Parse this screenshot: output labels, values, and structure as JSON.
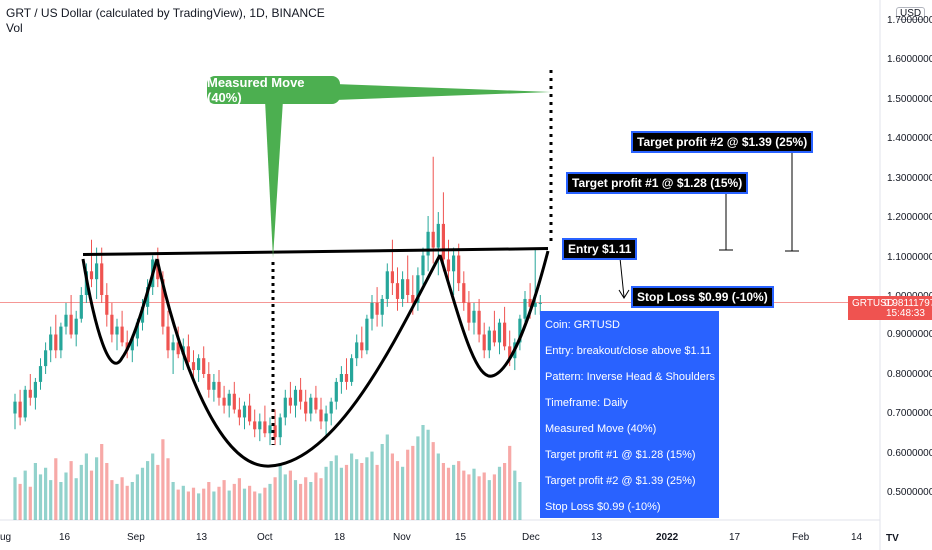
{
  "header": {
    "title": "GRT / US Dollar (calculated by TradingView), 1D, BINANCE",
    "vol_label": "Vol"
  },
  "currency_badge": "USD",
  "price_tag": {
    "symbol": "GRTUSD",
    "value": "0.98111797",
    "countdown": "15:48:33"
  },
  "y_axis_ticks": [
    "1.70000000",
    "1.60000000",
    "1.50000000",
    "1.40000000",
    "1.30000000",
    "1.20000000",
    "1.10000000",
    "1.00000000",
    "0.90000000",
    "0.80000000",
    "0.70000000",
    "0.60000000",
    "0.50000000"
  ],
  "x_axis_ticks": [
    "ug",
    "16",
    "Sep",
    "13",
    "Oct",
    "18",
    "Nov",
    "15",
    "Dec",
    "13",
    "2022",
    "17",
    "Feb",
    "14"
  ],
  "tv_logo": "TV",
  "annotations": {
    "measured_move": "Measured Move (40%)",
    "entry": "Entry $1.11",
    "target1": "Target profit #1 @ $1.28 (15%)",
    "target2": "Target profit #2 @ $1.39 (25%)",
    "stop_loss": "Stop Loss $0.99 (-10%)"
  },
  "info_box": [
    "Coin:  GRTUSD",
    "Entry: breakout/close above $1.11",
    "Pattern:  Inverse Head & Shoulders",
    "Timeframe:  Daily",
    "Measured Move (40%)",
    "Target profit #1 @ $1.28 (15%)",
    "Target profit #2 @ $1.39 (25%)",
    "Stop Loss $0.99 (-10%)"
  ],
  "colors": {
    "up": "#26a69a",
    "down": "#ef5350",
    "callout": "#4caf50",
    "info_bg": "#2962ff",
    "current_price": "#ef5350"
  },
  "chart_data": {
    "type": "candlestick",
    "ylim": [
      0.45,
      1.75
    ],
    "y_scale": "linear",
    "current_price": 0.98111797,
    "neckline": 1.11,
    "series": [
      {
        "o": 0.7,
        "h": 0.75,
        "l": 0.66,
        "c": 0.73
      },
      {
        "o": 0.73,
        "h": 0.76,
        "l": 0.67,
        "c": 0.69
      },
      {
        "o": 0.69,
        "h": 0.77,
        "l": 0.68,
        "c": 0.76
      },
      {
        "o": 0.76,
        "h": 0.8,
        "l": 0.72,
        "c": 0.74
      },
      {
        "o": 0.74,
        "h": 0.79,
        "l": 0.71,
        "c": 0.78
      },
      {
        "o": 0.78,
        "h": 0.84,
        "l": 0.76,
        "c": 0.82
      },
      {
        "o": 0.82,
        "h": 0.88,
        "l": 0.8,
        "c": 0.86
      },
      {
        "o": 0.86,
        "h": 0.92,
        "l": 0.83,
        "c": 0.9
      },
      {
        "o": 0.9,
        "h": 0.95,
        "l": 0.84,
        "c": 0.86
      },
      {
        "o": 0.86,
        "h": 0.93,
        "l": 0.84,
        "c": 0.92
      },
      {
        "o": 0.92,
        "h": 0.98,
        "l": 0.9,
        "c": 0.95
      },
      {
        "o": 0.95,
        "h": 1.0,
        "l": 0.89,
        "c": 0.9
      },
      {
        "o": 0.9,
        "h": 0.96,
        "l": 0.87,
        "c": 0.94
      },
      {
        "o": 0.94,
        "h": 1.02,
        "l": 0.93,
        "c": 1.0
      },
      {
        "o": 1.0,
        "h": 1.08,
        "l": 0.98,
        "c": 1.06
      },
      {
        "o": 1.06,
        "h": 1.14,
        "l": 1.02,
        "c": 1.04
      },
      {
        "o": 1.04,
        "h": 1.12,
        "l": 0.99,
        "c": 1.08
      },
      {
        "o": 1.08,
        "h": 1.12,
        "l": 0.98,
        "c": 1.0
      },
      {
        "o": 1.0,
        "h": 1.03,
        "l": 0.92,
        "c": 0.95
      },
      {
        "o": 0.95,
        "h": 0.98,
        "l": 0.88,
        "c": 0.9
      },
      {
        "o": 0.9,
        "h": 0.94,
        "l": 0.86,
        "c": 0.92
      },
      {
        "o": 0.92,
        "h": 0.96,
        "l": 0.87,
        "c": 0.88
      },
      {
        "o": 0.88,
        "h": 0.91,
        "l": 0.84,
        "c": 0.86
      },
      {
        "o": 0.86,
        "h": 0.9,
        "l": 0.83,
        "c": 0.89
      },
      {
        "o": 0.89,
        "h": 0.94,
        "l": 0.87,
        "c": 0.93
      },
      {
        "o": 0.93,
        "h": 0.99,
        "l": 0.91,
        "c": 0.97
      },
      {
        "o": 0.97,
        "h": 1.04,
        "l": 0.95,
        "c": 1.02
      },
      {
        "o": 1.02,
        "h": 1.1,
        "l": 1.0,
        "c": 1.09
      },
      {
        "o": 1.09,
        "h": 1.12,
        "l": 1.02,
        "c": 1.04
      },
      {
        "o": 1.04,
        "h": 1.06,
        "l": 0.9,
        "c": 0.92
      },
      {
        "o": 0.92,
        "h": 0.96,
        "l": 0.84,
        "c": 0.86
      },
      {
        "o": 0.86,
        "h": 0.9,
        "l": 0.8,
        "c": 0.88
      },
      {
        "o": 0.88,
        "h": 0.92,
        "l": 0.84,
        "c": 0.85
      },
      {
        "o": 0.85,
        "h": 0.89,
        "l": 0.81,
        "c": 0.87
      },
      {
        "o": 0.87,
        "h": 0.9,
        "l": 0.82,
        "c": 0.83
      },
      {
        "o": 0.83,
        "h": 0.86,
        "l": 0.79,
        "c": 0.81
      },
      {
        "o": 0.81,
        "h": 0.85,
        "l": 0.78,
        "c": 0.84
      },
      {
        "o": 0.84,
        "h": 0.87,
        "l": 0.79,
        "c": 0.8
      },
      {
        "o": 0.8,
        "h": 0.83,
        "l": 0.74,
        "c": 0.76
      },
      {
        "o": 0.76,
        "h": 0.8,
        "l": 0.73,
        "c": 0.78
      },
      {
        "o": 0.78,
        "h": 0.81,
        "l": 0.72,
        "c": 0.74
      },
      {
        "o": 0.74,
        "h": 0.77,
        "l": 0.7,
        "c": 0.72
      },
      {
        "o": 0.72,
        "h": 0.76,
        "l": 0.69,
        "c": 0.75
      },
      {
        "o": 0.75,
        "h": 0.78,
        "l": 0.7,
        "c": 0.71
      },
      {
        "o": 0.71,
        "h": 0.74,
        "l": 0.67,
        "c": 0.69
      },
      {
        "o": 0.69,
        "h": 0.73,
        "l": 0.66,
        "c": 0.72
      },
      {
        "o": 0.72,
        "h": 0.75,
        "l": 0.67,
        "c": 0.68
      },
      {
        "o": 0.68,
        "h": 0.71,
        "l": 0.64,
        "c": 0.66
      },
      {
        "o": 0.66,
        "h": 0.7,
        "l": 0.63,
        "c": 0.68
      },
      {
        "o": 0.68,
        "h": 0.72,
        "l": 0.64,
        "c": 0.65
      },
      {
        "o": 0.65,
        "h": 0.69,
        "l": 0.62,
        "c": 0.67
      },
      {
        "o": 0.67,
        "h": 0.71,
        "l": 0.62,
        "c": 0.64
      },
      {
        "o": 0.64,
        "h": 0.7,
        "l": 0.62,
        "c": 0.69
      },
      {
        "o": 0.69,
        "h": 0.76,
        "l": 0.67,
        "c": 0.74
      },
      {
        "o": 0.74,
        "h": 0.78,
        "l": 0.7,
        "c": 0.72
      },
      {
        "o": 0.72,
        "h": 0.77,
        "l": 0.69,
        "c": 0.76
      },
      {
        "o": 0.76,
        "h": 0.79,
        "l": 0.71,
        "c": 0.73
      },
      {
        "o": 0.73,
        "h": 0.76,
        "l": 0.68,
        "c": 0.7
      },
      {
        "o": 0.7,
        "h": 0.75,
        "l": 0.68,
        "c": 0.74
      },
      {
        "o": 0.74,
        "h": 0.77,
        "l": 0.7,
        "c": 0.71
      },
      {
        "o": 0.71,
        "h": 0.74,
        "l": 0.66,
        "c": 0.68
      },
      {
        "o": 0.68,
        "h": 0.72,
        "l": 0.64,
        "c": 0.7
      },
      {
        "o": 0.7,
        "h": 0.74,
        "l": 0.67,
        "c": 0.73
      },
      {
        "o": 0.73,
        "h": 0.79,
        "l": 0.71,
        "c": 0.78
      },
      {
        "o": 0.78,
        "h": 0.82,
        "l": 0.75,
        "c": 0.8
      },
      {
        "o": 0.8,
        "h": 0.84,
        "l": 0.76,
        "c": 0.78
      },
      {
        "o": 0.78,
        "h": 0.85,
        "l": 0.77,
        "c": 0.84
      },
      {
        "o": 0.84,
        "h": 0.9,
        "l": 0.82,
        "c": 0.88
      },
      {
        "o": 0.88,
        "h": 0.92,
        "l": 0.84,
        "c": 0.86
      },
      {
        "o": 0.86,
        "h": 0.95,
        "l": 0.85,
        "c": 0.94
      },
      {
        "o": 0.94,
        "h": 1.0,
        "l": 0.91,
        "c": 0.98
      },
      {
        "o": 0.98,
        "h": 1.02,
        "l": 0.92,
        "c": 0.95
      },
      {
        "o": 0.95,
        "h": 1.0,
        "l": 0.92,
        "c": 0.99
      },
      {
        "o": 0.99,
        "h": 1.08,
        "l": 0.97,
        "c": 1.06
      },
      {
        "o": 1.06,
        "h": 1.14,
        "l": 1.0,
        "c": 1.03
      },
      {
        "o": 1.03,
        "h": 1.07,
        "l": 0.96,
        "c": 0.99
      },
      {
        "o": 0.99,
        "h": 1.06,
        "l": 0.97,
        "c": 1.04
      },
      {
        "o": 1.04,
        "h": 1.1,
        "l": 0.98,
        "c": 1.0
      },
      {
        "o": 1.0,
        "h": 1.05,
        "l": 0.95,
        "c": 0.98
      },
      {
        "o": 0.98,
        "h": 1.07,
        "l": 0.96,
        "c": 1.05
      },
      {
        "o": 1.05,
        "h": 1.12,
        "l": 1.02,
        "c": 1.1
      },
      {
        "o": 1.1,
        "h": 1.2,
        "l": 1.06,
        "c": 1.16
      },
      {
        "o": 1.16,
        "h": 1.35,
        "l": 1.08,
        "c": 1.12
      },
      {
        "o": 1.12,
        "h": 1.21,
        "l": 1.05,
        "c": 1.18
      },
      {
        "o": 1.18,
        "h": 1.26,
        "l": 1.06,
        "c": 1.09
      },
      {
        "o": 1.09,
        "h": 1.14,
        "l": 1.02,
        "c": 1.06
      },
      {
        "o": 1.06,
        "h": 1.12,
        "l": 1.0,
        "c": 1.1
      },
      {
        "o": 1.1,
        "h": 1.13,
        "l": 1.01,
        "c": 1.03
      },
      {
        "o": 1.03,
        "h": 1.06,
        "l": 0.96,
        "c": 0.98
      },
      {
        "o": 0.98,
        "h": 1.01,
        "l": 0.91,
        "c": 0.93
      },
      {
        "o": 0.93,
        "h": 0.98,
        "l": 0.9,
        "c": 0.96
      },
      {
        "o": 0.96,
        "h": 0.99,
        "l": 0.88,
        "c": 0.9
      },
      {
        "o": 0.9,
        "h": 0.93,
        "l": 0.84,
        "c": 0.86
      },
      {
        "o": 0.86,
        "h": 0.92,
        "l": 0.84,
        "c": 0.91
      },
      {
        "o": 0.91,
        "h": 0.96,
        "l": 0.87,
        "c": 0.88
      },
      {
        "o": 0.88,
        "h": 0.94,
        "l": 0.85,
        "c": 0.93
      },
      {
        "o": 0.93,
        "h": 0.97,
        "l": 0.86,
        "c": 0.87
      },
      {
        "o": 0.87,
        "h": 0.91,
        "l": 0.82,
        "c": 0.84
      },
      {
        "o": 0.84,
        "h": 0.89,
        "l": 0.81,
        "c": 0.88
      },
      {
        "o": 0.88,
        "h": 0.95,
        "l": 0.86,
        "c": 0.94
      },
      {
        "o": 0.94,
        "h": 1.01,
        "l": 0.92,
        "c": 0.99
      },
      {
        "o": 0.99,
        "h": 1.03,
        "l": 0.94,
        "c": 0.97
      },
      {
        "o": 0.97,
        "h": 1.12,
        "l": 0.95,
        "c": 0.98
      },
      {
        "o": 0.98,
        "h": 1.0,
        "l": 0.95,
        "c": 0.98
      }
    ],
    "volume": [
      0.45,
      0.38,
      0.52,
      0.35,
      0.6,
      0.48,
      0.55,
      0.42,
      0.65,
      0.4,
      0.5,
      0.62,
      0.44,
      0.58,
      0.7,
      0.52,
      0.66,
      0.8,
      0.6,
      0.42,
      0.38,
      0.45,
      0.36,
      0.4,
      0.48,
      0.55,
      0.62,
      0.7,
      0.58,
      0.85,
      0.65,
      0.4,
      0.32,
      0.36,
      0.3,
      0.34,
      0.28,
      0.33,
      0.4,
      0.3,
      0.35,
      0.42,
      0.31,
      0.38,
      0.44,
      0.33,
      0.36,
      0.3,
      0.28,
      0.34,
      0.38,
      0.45,
      0.6,
      0.48,
      0.52,
      0.42,
      0.38,
      0.45,
      0.4,
      0.5,
      0.44,
      0.56,
      0.62,
      0.68,
      0.55,
      0.58,
      0.7,
      0.64,
      0.6,
      0.66,
      0.72,
      0.58,
      0.8,
      0.9,
      0.7,
      0.62,
      0.56,
      0.74,
      0.78,
      0.88,
      1.0,
      0.95,
      0.82,
      0.7,
      0.6,
      0.55,
      0.58,
      0.62,
      0.52,
      0.48,
      0.54,
      0.46,
      0.5,
      0.42,
      0.48,
      0.56,
      0.6,
      0.78,
      0.52,
      0.4
    ]
  }
}
